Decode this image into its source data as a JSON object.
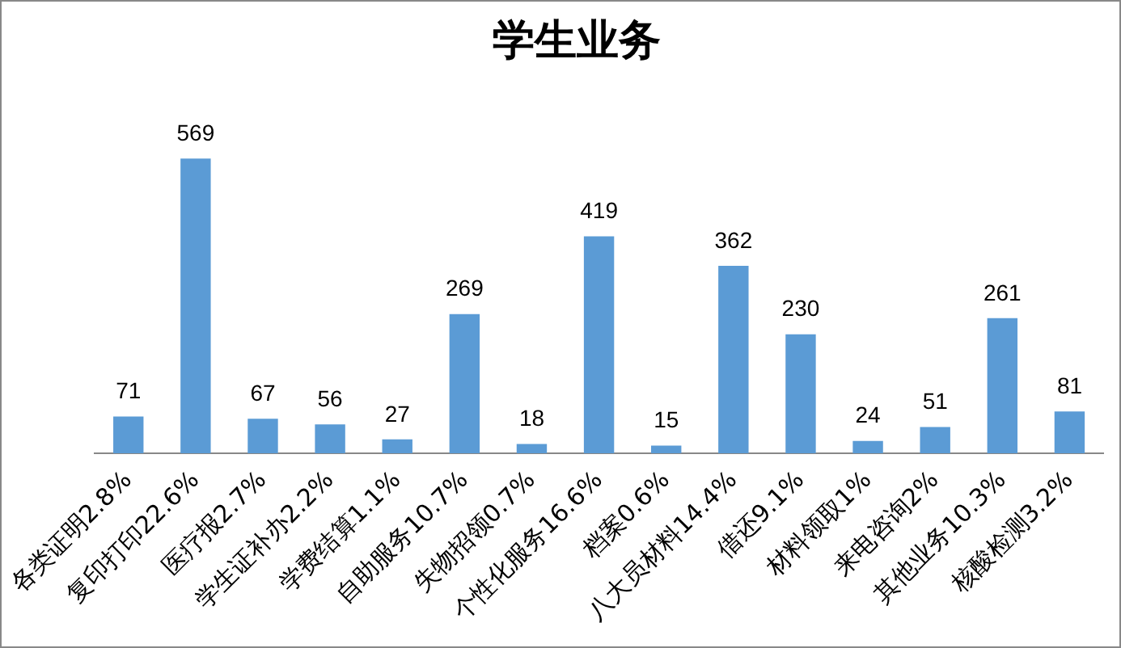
{
  "chart_data": {
    "type": "bar",
    "title": "学生业务",
    "categories": [
      "各类证明2.8%",
      "复印打印22.6%",
      "医疗报2.7%",
      "学生证补办2.2%",
      "学费结算1.1%",
      "自助服务10.7%",
      "失物招领0.7%",
      "个性化服务16.6%",
      "档案0.6%",
      "八大员材料14.4%",
      "借还9.1%",
      "材料领取1%",
      "来电咨询2%",
      "其他业务10.3%",
      "核酸检测3.2%"
    ],
    "values": [
      71,
      569,
      67,
      56,
      27,
      269,
      18,
      419,
      15,
      362,
      230,
      24,
      51,
      261,
      81
    ],
    "color": "#5b9bd5",
    "data_labels": true,
    "grid": false,
    "legend": false,
    "tick_labels": "x"
  }
}
